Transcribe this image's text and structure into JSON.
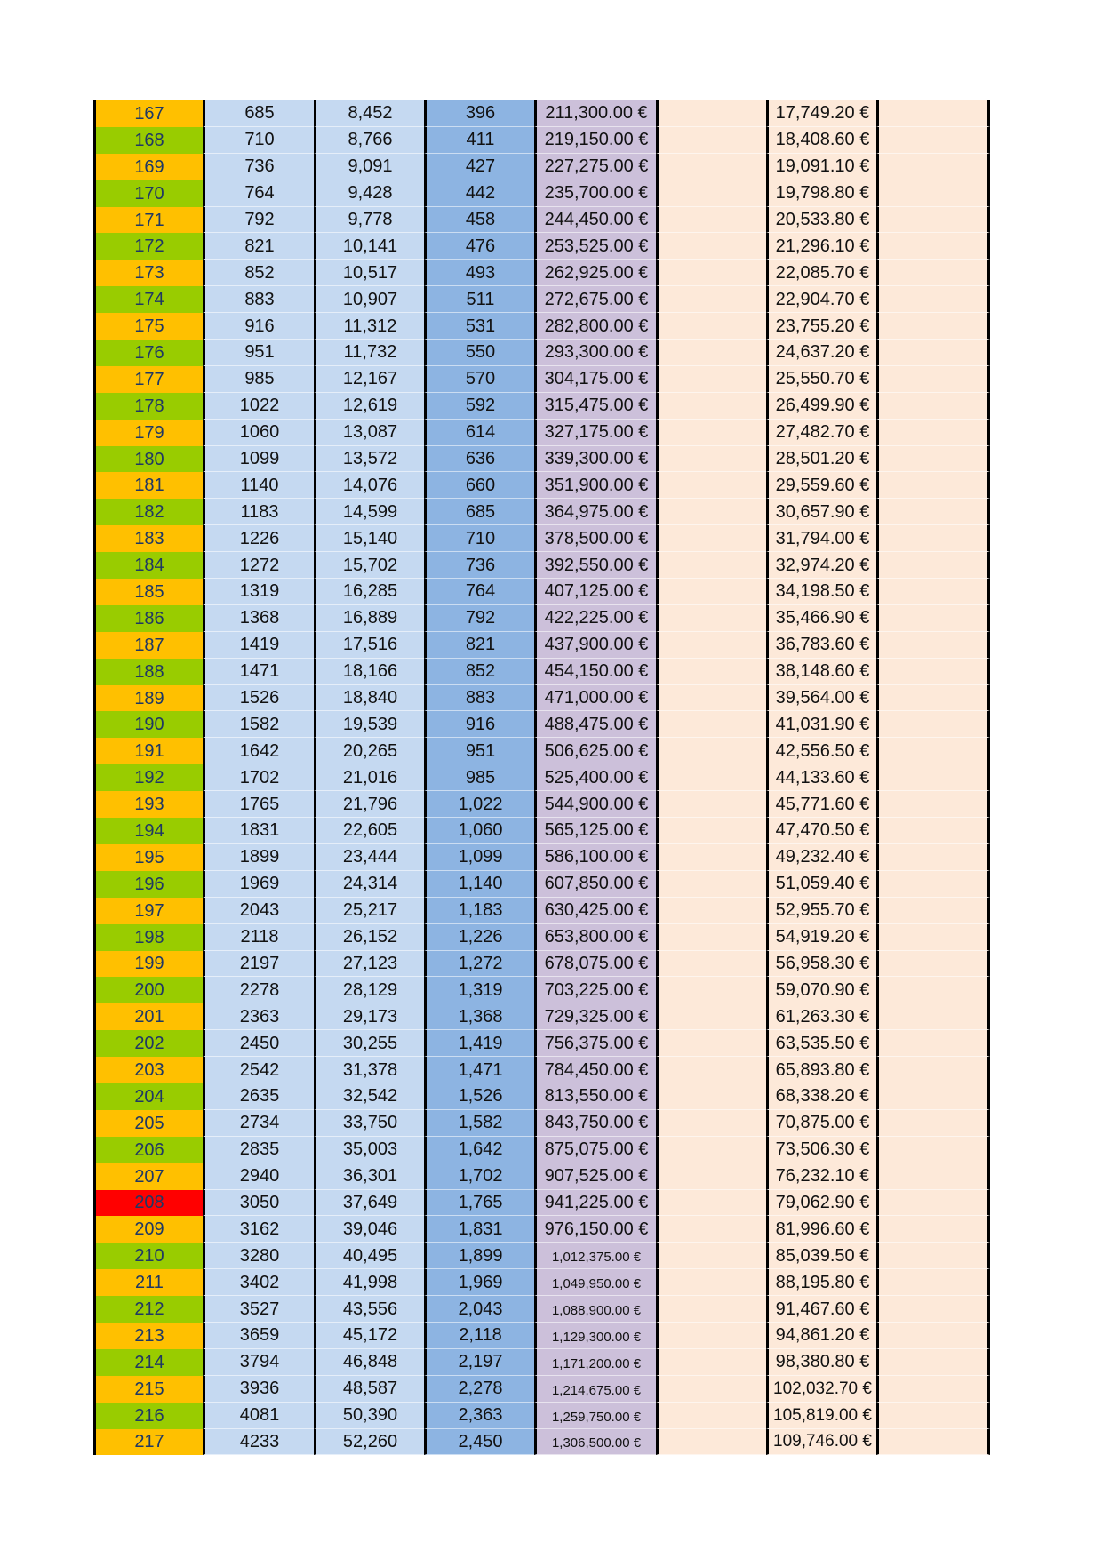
{
  "level_colors": {
    "odd": "#FFC000",
    "even": "#99CC00",
    "highlight": "#FF0000"
  },
  "highlighted_levels": [
    "208"
  ],
  "column_colors": [
    "#C5D9F1",
    "#C5D9F1",
    "#8DB4E2",
    "#CCC0DA",
    "#FDE9D9",
    "#FDE9D9",
    "#FDE9D9"
  ],
  "rows": [
    [
      "167",
      "685",
      "8,452",
      "396",
      "211,300.00 €",
      "17,749.20 €"
    ],
    [
      "168",
      "710",
      "8,766",
      "411",
      "219,150.00 €",
      "18,408.60 €"
    ],
    [
      "169",
      "736",
      "9,091",
      "427",
      "227,275.00 €",
      "19,091.10 €"
    ],
    [
      "170",
      "764",
      "9,428",
      "442",
      "235,700.00 €",
      "19,798.80 €"
    ],
    [
      "171",
      "792",
      "9,778",
      "458",
      "244,450.00 €",
      "20,533.80 €"
    ],
    [
      "172",
      "821",
      "10,141",
      "476",
      "253,525.00 €",
      "21,296.10 €"
    ],
    [
      "173",
      "852",
      "10,517",
      "493",
      "262,925.00 €",
      "22,085.70 €"
    ],
    [
      "174",
      "883",
      "10,907",
      "511",
      "272,675.00 €",
      "22,904.70 €"
    ],
    [
      "175",
      "916",
      "11,312",
      "531",
      "282,800.00 €",
      "23,755.20 €"
    ],
    [
      "176",
      "951",
      "11,732",
      "550",
      "293,300.00 €",
      "24,637.20 €"
    ],
    [
      "177",
      "985",
      "12,167",
      "570",
      "304,175.00 €",
      "25,550.70 €"
    ],
    [
      "178",
      "1022",
      "12,619",
      "592",
      "315,475.00 €",
      "26,499.90 €"
    ],
    [
      "179",
      "1060",
      "13,087",
      "614",
      "327,175.00 €",
      "27,482.70 €"
    ],
    [
      "180",
      "1099",
      "13,572",
      "636",
      "339,300.00 €",
      "28,501.20 €"
    ],
    [
      "181",
      "1140",
      "14,076",
      "660",
      "351,900.00 €",
      "29,559.60 €"
    ],
    [
      "182",
      "1183",
      "14,599",
      "685",
      "364,975.00 €",
      "30,657.90 €"
    ],
    [
      "183",
      "1226",
      "15,140",
      "710",
      "378,500.00 €",
      "31,794.00 €"
    ],
    [
      "184",
      "1272",
      "15,702",
      "736",
      "392,550.00 €",
      "32,974.20 €"
    ],
    [
      "185",
      "1319",
      "16,285",
      "764",
      "407,125.00 €",
      "34,198.50 €"
    ],
    [
      "186",
      "1368",
      "16,889",
      "792",
      "422,225.00 €",
      "35,466.90 €"
    ],
    [
      "187",
      "1419",
      "17,516",
      "821",
      "437,900.00 €",
      "36,783.60 €"
    ],
    [
      "188",
      "1471",
      "18,166",
      "852",
      "454,150.00 €",
      "38,148.60 €"
    ],
    [
      "189",
      "1526",
      "18,840",
      "883",
      "471,000.00 €",
      "39,564.00 €"
    ],
    [
      "190",
      "1582",
      "19,539",
      "916",
      "488,475.00 €",
      "41,031.90 €"
    ],
    [
      "191",
      "1642",
      "20,265",
      "951",
      "506,625.00 €",
      "42,556.50 €"
    ],
    [
      "192",
      "1702",
      "21,016",
      "985",
      "525,400.00 €",
      "44,133.60 €"
    ],
    [
      "193",
      "1765",
      "21,796",
      "1,022",
      "544,900.00 €",
      "45,771.60 €"
    ],
    [
      "194",
      "1831",
      "22,605",
      "1,060",
      "565,125.00 €",
      "47,470.50 €"
    ],
    [
      "195",
      "1899",
      "23,444",
      "1,099",
      "586,100.00 €",
      "49,232.40 €"
    ],
    [
      "196",
      "1969",
      "24,314",
      "1,140",
      "607,850.00 €",
      "51,059.40 €"
    ],
    [
      "197",
      "2043",
      "25,217",
      "1,183",
      "630,425.00 €",
      "52,955.70 €"
    ],
    [
      "198",
      "2118",
      "26,152",
      "1,226",
      "653,800.00 €",
      "54,919.20 €"
    ],
    [
      "199",
      "2197",
      "27,123",
      "1,272",
      "678,075.00 €",
      "56,958.30 €"
    ],
    [
      "200",
      "2278",
      "28,129",
      "1,319",
      "703,225.00 €",
      "59,070.90 €"
    ],
    [
      "201",
      "2363",
      "29,173",
      "1,368",
      "729,325.00 €",
      "61,263.30 €"
    ],
    [
      "202",
      "2450",
      "30,255",
      "1,419",
      "756,375.00 €",
      "63,535.50 €"
    ],
    [
      "203",
      "2542",
      "31,378",
      "1,471",
      "784,450.00 €",
      "65,893.80 €"
    ],
    [
      "204",
      "2635",
      "32,542",
      "1,526",
      "813,550.00 €",
      "68,338.20 €"
    ],
    [
      "205",
      "2734",
      "33,750",
      "1,582",
      "843,750.00 €",
      "70,875.00 €"
    ],
    [
      "206",
      "2835",
      "35,003",
      "1,642",
      "875,075.00 €",
      "73,506.30 €"
    ],
    [
      "207",
      "2940",
      "36,301",
      "1,702",
      "907,525.00 €",
      "76,232.10 €"
    ],
    [
      "208",
      "3050",
      "37,649",
      "1,765",
      "941,225.00 €",
      "79,062.90 €"
    ],
    [
      "209",
      "3162",
      "39,046",
      "1,831",
      "976,150.00 €",
      "81,996.60 €"
    ],
    [
      "210",
      "3280",
      "40,495",
      "1,899",
      "1,012,375.00 €",
      "85,039.50 €"
    ],
    [
      "211",
      "3402",
      "41,998",
      "1,969",
      "1,049,950.00 €",
      "88,195.80 €"
    ],
    [
      "212",
      "3527",
      "43,556",
      "2,043",
      "1,088,900.00 €",
      "91,467.60 €"
    ],
    [
      "213",
      "3659",
      "45,172",
      "2,118",
      "1,129,300.00 €",
      "94,861.20 €"
    ],
    [
      "214",
      "3794",
      "46,848",
      "2,197",
      "1,171,200.00 €",
      "98,380.80 €"
    ],
    [
      "215",
      "3936",
      "48,587",
      "2,278",
      "1,214,675.00 €",
      "102,032.70 €"
    ],
    [
      "216",
      "4081",
      "50,390",
      "2,363",
      "1,259,750.00 €",
      "105,819.00 €"
    ],
    [
      "217",
      "4233",
      "52,260",
      "2,450",
      "1,306,500.00 €",
      "109,746.00 €"
    ]
  ]
}
